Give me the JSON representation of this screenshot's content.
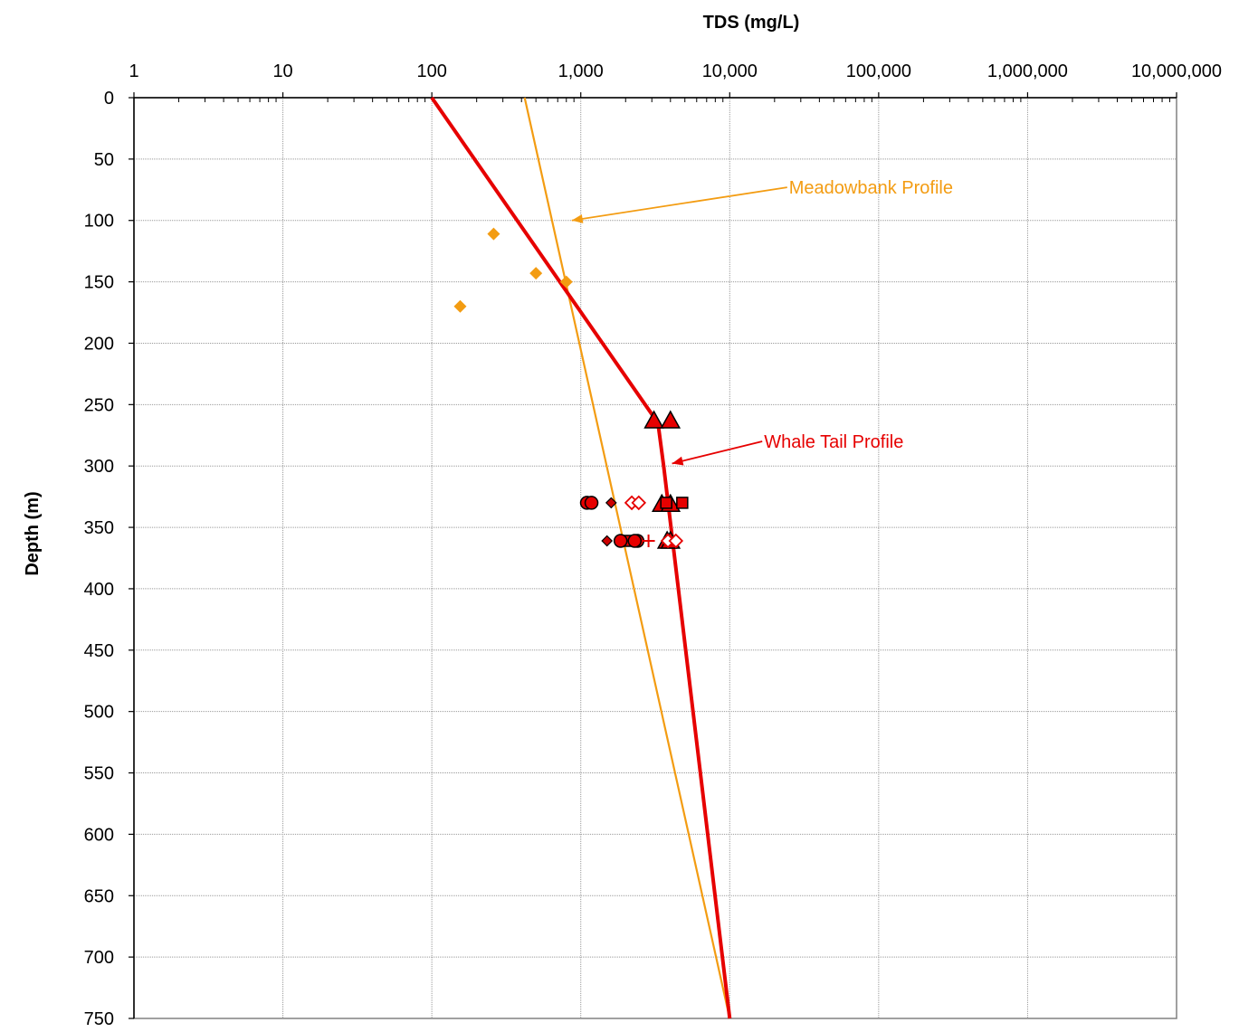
{
  "chart_data": {
    "type": "scatter",
    "title": "",
    "xlabel": "TDS (mg/L)",
    "ylabel": "Depth (m)",
    "x_scale": "log",
    "xlim": [
      1,
      10000000
    ],
    "ylim": [
      0,
      750
    ],
    "y_inverted": true,
    "grid": true,
    "legend": "none",
    "x_tick_labels": [
      "1",
      "10",
      "100",
      "1,000",
      "10,000",
      "100,000",
      "1,000,000",
      "10,000,000"
    ],
    "x_tick_values": [
      1,
      10,
      100,
      1000,
      10000,
      100000,
      1000000,
      10000000
    ],
    "y_tick_labels": [
      "0",
      "50",
      "100",
      "150",
      "200",
      "250",
      "300",
      "350",
      "400",
      "450",
      "500",
      "550",
      "600",
      "650",
      "700",
      "750"
    ],
    "y_tick_values": [
      0,
      50,
      100,
      150,
      200,
      250,
      300,
      350,
      400,
      450,
      500,
      550,
      600,
      650,
      700,
      750
    ],
    "colors": {
      "meadowbank": "#f39c12",
      "whale_tail": "#e60000",
      "marker_edge": "#000000"
    },
    "series": [
      {
        "name": "Meadowbank Profile",
        "kind": "line",
        "color": "#f39c12",
        "points": [
          [
            420,
            0
          ],
          [
            10000,
            750
          ]
        ]
      },
      {
        "name": "Whale Tail Profile",
        "kind": "line",
        "color": "#e60000",
        "points": [
          [
            100,
            0
          ],
          [
            3300,
            265
          ],
          [
            3600,
            300
          ],
          [
            10000,
            750
          ]
        ]
      },
      {
        "kind": "markers",
        "marker": "diamond",
        "color": "#f39c12",
        "points": [
          [
            260,
            111
          ],
          [
            500,
            143
          ],
          [
            800,
            150
          ],
          [
            155,
            170
          ]
        ]
      },
      {
        "kind": "markers",
        "marker": "triangle",
        "color": "#e60000",
        "points": [
          [
            3100,
            263
          ],
          [
            4000,
            263
          ],
          [
            3500,
            331
          ],
          [
            4000,
            331
          ],
          [
            3800,
            361
          ],
          [
            4000,
            361
          ]
        ]
      },
      {
        "kind": "markers",
        "marker": "square",
        "color": "#e60000",
        "points": [
          [
            3750,
            330
          ],
          [
            4800,
            330
          ],
          [
            2000,
            361
          ]
        ]
      },
      {
        "kind": "markers",
        "marker": "circle",
        "color": "#e60000",
        "points": [
          [
            1100,
            330
          ],
          [
            1180,
            330
          ],
          [
            1850,
            361
          ],
          [
            2400,
            361
          ],
          [
            2300,
            361
          ]
        ]
      },
      {
        "kind": "markers",
        "marker": "small-diamond",
        "color": "#cc0000",
        "points": [
          [
            1600,
            330
          ],
          [
            1500,
            361
          ]
        ]
      },
      {
        "kind": "markers",
        "marker": "open-diamond",
        "color": "#e60000",
        "points": [
          [
            2200,
            330
          ],
          [
            2450,
            330
          ],
          [
            3850,
            361
          ],
          [
            4350,
            361
          ]
        ]
      },
      {
        "kind": "markers",
        "marker": "plus",
        "color": "#e60000",
        "points": [
          [
            2850,
            361
          ]
        ]
      }
    ],
    "annotations": [
      {
        "text": "Meadowbank Profile",
        "color": "#f39c12",
        "x": 25000,
        "y": 73,
        "arrow_to": [
          870,
          100
        ]
      },
      {
        "text": "Whale Tail Profile",
        "color": "#e60000",
        "x": 17000,
        "y": 280,
        "arrow_to": [
          4100,
          298
        ]
      }
    ]
  }
}
